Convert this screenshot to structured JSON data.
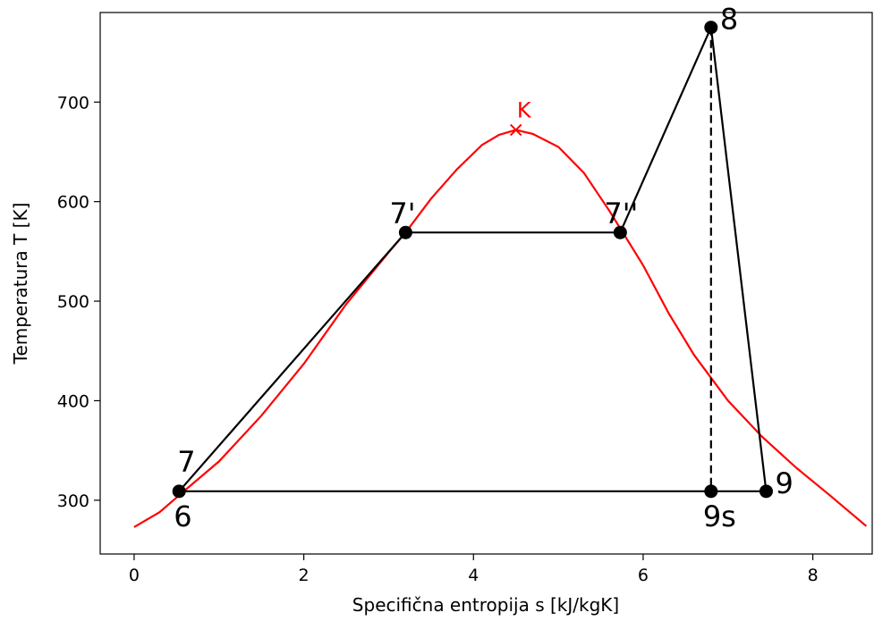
{
  "chart_data": {
    "type": "line",
    "xlabel": "Specifična entropija s [kJ/kgK]",
    "ylabel": "Temperatura T [K]",
    "xlim": [
      -0.4,
      8.7
    ],
    "ylim": [
      246,
      790
    ],
    "x_ticks": [
      0,
      2,
      4,
      6,
      8
    ],
    "y_ticks": [
      300,
      400,
      500,
      600,
      700
    ],
    "grid": false,
    "critical_point": {
      "label": "K",
      "s": 4.5,
      "T": 672,
      "color": "#ff0000"
    },
    "saturation_curve": {
      "color": "#ff0000",
      "points": [
        [
          0.0,
          273
        ],
        [
          0.3,
          288
        ],
        [
          0.6,
          310
        ],
        [
          1.0,
          339
        ],
        [
          1.5,
          385
        ],
        [
          2.0,
          437
        ],
        [
          2.5,
          497
        ],
        [
          3.0,
          549
        ],
        [
          3.2,
          569
        ],
        [
          3.5,
          603
        ],
        [
          3.8,
          632
        ],
        [
          4.1,
          657
        ],
        [
          4.3,
          667
        ],
        [
          4.5,
          672
        ],
        [
          4.7,
          668
        ],
        [
          5.0,
          655
        ],
        [
          5.3,
          629
        ],
        [
          5.6,
          591
        ],
        [
          5.76,
          569
        ],
        [
          6.0,
          536
        ],
        [
          6.3,
          488
        ],
        [
          6.6,
          446
        ],
        [
          7.0,
          400
        ],
        [
          7.4,
          364
        ],
        [
          7.8,
          333
        ],
        [
          8.2,
          305
        ],
        [
          8.63,
          274
        ]
      ]
    },
    "cycle_points": [
      {
        "label": "7",
        "s": 0.53,
        "T": 309,
        "label_pos": "above"
      },
      {
        "label": "6",
        "s": 0.53,
        "T": 309,
        "label_pos": "below"
      },
      {
        "label": "7'",
        "s": 3.2,
        "T": 569,
        "label_pos": "above"
      },
      {
        "label": "7''",
        "s": 5.73,
        "T": 569,
        "label_pos": "above"
      },
      {
        "label": "8",
        "s": 6.8,
        "T": 775,
        "label_pos": "right"
      },
      {
        "label": "9",
        "s": 7.45,
        "T": 309,
        "label_pos": "right"
      },
      {
        "label": "9s",
        "s": 6.8,
        "T": 309,
        "label_pos": "below"
      }
    ],
    "cycle_lines": [
      {
        "style": "solid",
        "points": [
          [
            0.53,
            309
          ],
          [
            3.2,
            569
          ]
        ]
      },
      {
        "style": "solid",
        "points": [
          [
            3.2,
            569
          ],
          [
            5.73,
            569
          ]
        ]
      },
      {
        "style": "solid",
        "points": [
          [
            5.73,
            569
          ],
          [
            6.8,
            775
          ]
        ]
      },
      {
        "style": "solid",
        "points": [
          [
            6.8,
            775
          ],
          [
            7.45,
            309
          ]
        ]
      },
      {
        "style": "solid",
        "points": [
          [
            0.53,
            309
          ],
          [
            7.45,
            309
          ]
        ]
      },
      {
        "style": "dashed",
        "points": [
          [
            6.8,
            775
          ],
          [
            6.8,
            309
          ]
        ]
      }
    ],
    "line_color": "#000000"
  }
}
